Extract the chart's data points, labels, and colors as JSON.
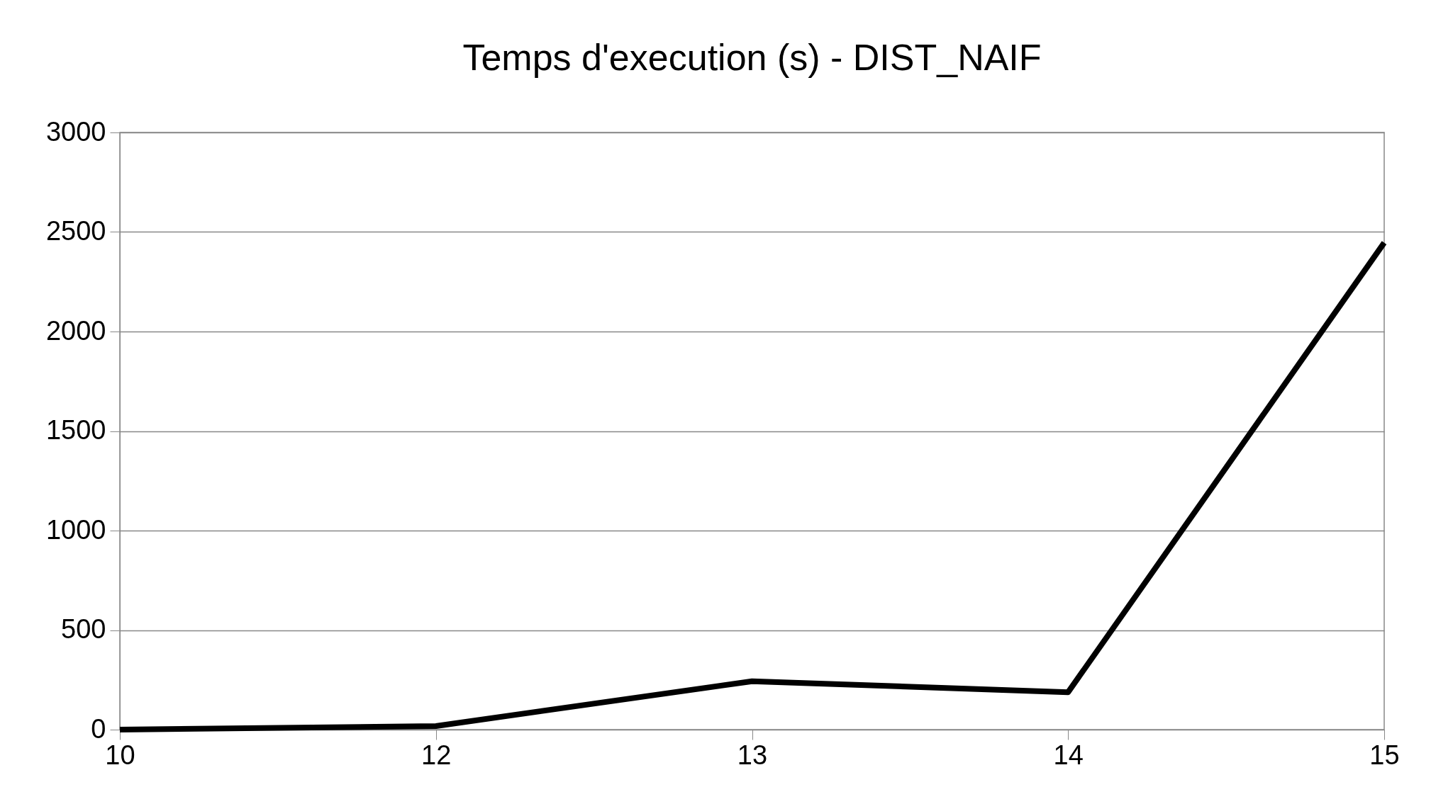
{
  "chart_data": {
    "type": "line",
    "title": "Temps d'execution (s) - DIST_NAIF",
    "categories": [
      "10",
      "12",
      "13",
      "14",
      "15"
    ],
    "series": [
      {
        "color": "#000000",
        "values": [
          0,
          18,
          243,
          188,
          2446
        ]
      }
    ],
    "ylim": [
      0,
      3000
    ],
    "yticks": [
      0,
      500,
      1000,
      1500,
      2000,
      2500,
      3000
    ],
    "grid": "y",
    "marker": "none",
    "line_style": "solid"
  }
}
